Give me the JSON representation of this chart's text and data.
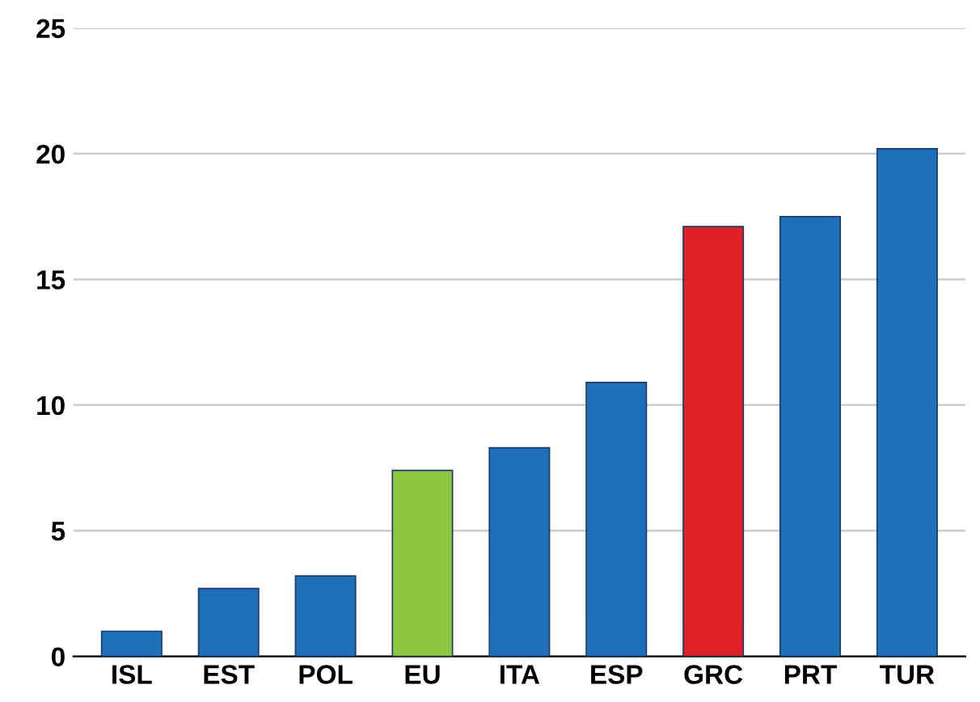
{
  "chart_data": {
    "type": "bar",
    "categories": [
      "ISL",
      "EST",
      "POL",
      "EU",
      "ITA",
      "ESP",
      "GRC",
      "PRT",
      "TUR"
    ],
    "values": [
      1.0,
      2.7,
      3.2,
      7.4,
      8.3,
      10.9,
      17.1,
      17.5,
      20.2
    ],
    "colors": [
      "#1f6fba",
      "#1f6fba",
      "#1f6fba",
      "#8dc63f",
      "#1f6fba",
      "#1f6fba",
      "#e02027",
      "#1f6fba",
      "#1f6fba"
    ],
    "ylim": [
      0,
      25
    ],
    "yticks": [
      0,
      5,
      10,
      15,
      20,
      25
    ],
    "grid": "y"
  }
}
